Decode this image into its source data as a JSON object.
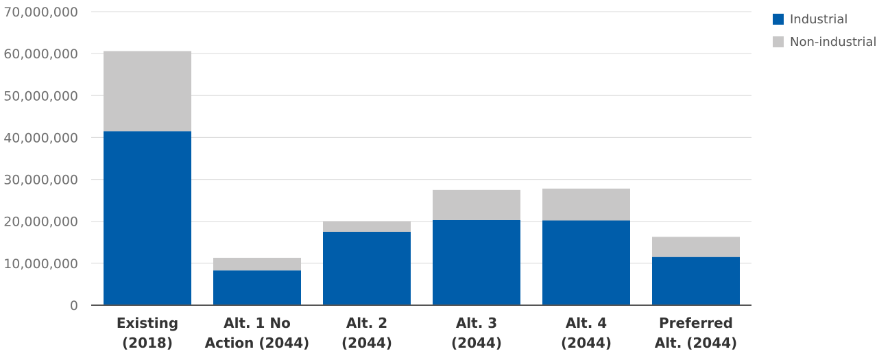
{
  "chart_data": {
    "type": "bar",
    "stacked": true,
    "categories": [
      [
        "Existing",
        "(2018)"
      ],
      [
        "Alt. 1 No",
        "Action (2044)"
      ],
      [
        "Alt. 2",
        "(2044)"
      ],
      [
        "Alt. 3",
        "(2044)"
      ],
      [
        "Alt. 4",
        "(2044)"
      ],
      [
        "Preferred",
        "Alt. (2044)"
      ]
    ],
    "series": [
      {
        "name": "Industrial",
        "color": "#005daa",
        "values": [
          41500000,
          8300000,
          17500000,
          20300000,
          20200000,
          11500000
        ]
      },
      {
        "name": "Non-industrial",
        "color": "#c8c7c7",
        "values": [
          19100000,
          3000000,
          2500000,
          7200000,
          7600000,
          4800000
        ]
      }
    ],
    "ylim": [
      0,
      70000000
    ],
    "yticks": [
      0,
      10000000,
      20000000,
      30000000,
      40000000,
      50000000,
      60000000,
      70000000
    ],
    "ytick_labels": [
      "0",
      "10,000,000",
      "20,000,000",
      "30,000,000",
      "40,000,000",
      "50,000,000",
      "60,000,000",
      "70,000,000"
    ],
    "title": "",
    "xlabel": "",
    "ylabel": "",
    "grid": true,
    "legend_position": "top-right"
  }
}
